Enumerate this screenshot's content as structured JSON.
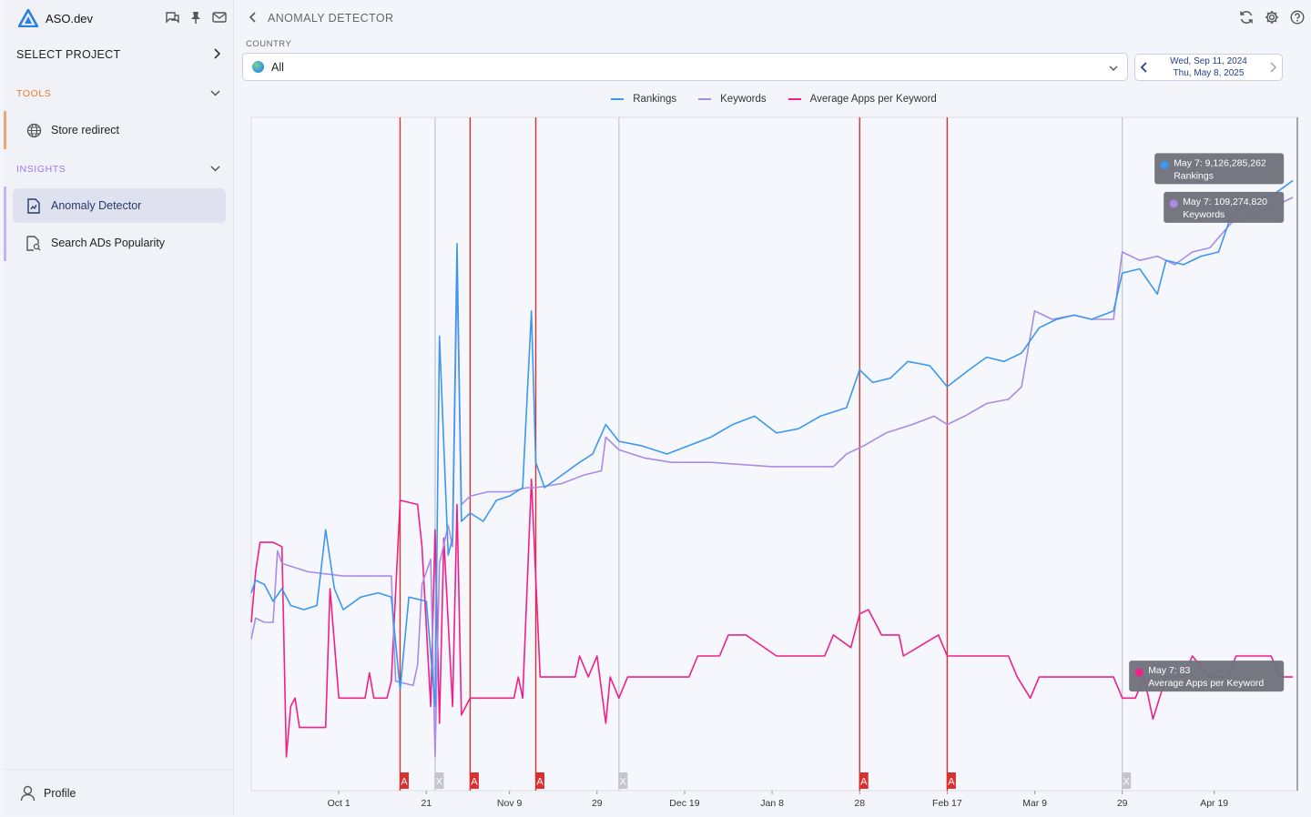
{
  "app": {
    "name": "ASO.dev"
  },
  "sidebar": {
    "select_project": "SELECT PROJECT",
    "sections": [
      {
        "title": "TOOLS",
        "items": [
          {
            "label": "Store redirect",
            "icon": "globe-icon"
          }
        ]
      },
      {
        "title": "INSIGHTS",
        "items": [
          {
            "label": "Anomaly Detector",
            "icon": "document-chart-icon",
            "active": true
          },
          {
            "label": "Search ADs Popularity",
            "icon": "document-search-icon"
          }
        ]
      }
    ],
    "profile": "Profile"
  },
  "page": {
    "title": "ANOMALY DETECTOR"
  },
  "filters": {
    "country_label": "COUNTRY",
    "country_value": "All",
    "date_start": "Wed, Sep 11, 2024",
    "date_end": "Thu, May 8, 2025"
  },
  "colors": {
    "rankings": "#3a98f0",
    "keywords": "#a98be6",
    "avg_apps": "#f0208a",
    "anomaly": "#d93030",
    "excluded": "#c3c4cc"
  },
  "chart_data": {
    "type": "line",
    "legend_position": "top",
    "series": [
      {
        "name": "Rankings",
        "color": "#3a98f0",
        "points": [
          [
            "2024-09-11",
            5.35
          ],
          [
            "2024-09-12",
            5.5
          ],
          [
            "2024-09-14",
            5.45
          ],
          [
            "2024-09-16",
            5.25
          ],
          [
            "2024-09-18",
            5.4
          ],
          [
            "2024-09-20",
            5.2
          ],
          [
            "2024-09-23",
            5.15
          ],
          [
            "2024-09-26",
            5.2
          ],
          [
            "2024-09-28",
            6.1
          ],
          [
            "2024-09-30",
            5.4
          ],
          [
            "2024-10-02",
            5.15
          ],
          [
            "2024-10-06",
            5.3
          ],
          [
            "2024-10-10",
            5.35
          ],
          [
            "2024-10-13",
            5.3
          ],
          [
            "2024-10-15",
            4.2
          ],
          [
            "2024-10-17",
            5.3
          ],
          [
            "2024-10-21",
            5.25
          ],
          [
            "2024-10-23",
            4.0
          ],
          [
            "2024-10-24",
            8.4
          ],
          [
            "2024-10-26",
            5.8
          ],
          [
            "2024-10-27",
            6.0
          ],
          [
            "2024-10-28",
            9.5
          ],
          [
            "2024-10-29",
            6.2
          ],
          [
            "2024-10-31",
            6.3
          ],
          [
            "2024-11-03",
            6.2
          ],
          [
            "2024-11-06",
            6.45
          ],
          [
            "2024-11-09",
            6.5
          ],
          [
            "2024-11-12",
            6.6
          ],
          [
            "2024-11-14",
            8.7
          ],
          [
            "2024-11-15",
            6.9
          ],
          [
            "2024-11-17",
            6.6
          ],
          [
            "2024-11-21",
            6.75
          ],
          [
            "2024-11-25",
            6.9
          ],
          [
            "2024-11-28",
            7.0
          ],
          [
            "2024-12-01",
            7.35
          ],
          [
            "2024-12-04",
            7.15
          ],
          [
            "2024-12-09",
            7.1
          ],
          [
            "2024-12-15",
            7.0
          ],
          [
            "2024-12-20",
            7.1
          ],
          [
            "2024-12-25",
            7.2
          ],
          [
            "2024-12-30",
            7.35
          ],
          [
            "2025-01-04",
            7.45
          ],
          [
            "2025-01-09",
            7.25
          ],
          [
            "2025-01-14",
            7.3
          ],
          [
            "2025-01-19",
            7.45
          ],
          [
            "2025-01-25",
            7.55
          ],
          [
            "2025-01-28",
            8.0
          ],
          [
            "2025-01-31",
            7.85
          ],
          [
            "2025-02-04",
            7.9
          ],
          [
            "2025-02-08",
            8.1
          ],
          [
            "2025-02-13",
            8.05
          ],
          [
            "2025-02-17",
            7.8
          ],
          [
            "2025-02-22",
            8.0
          ],
          [
            "2025-02-26",
            8.15
          ],
          [
            "2025-03-02",
            8.1
          ],
          [
            "2025-03-06",
            8.2
          ],
          [
            "2025-03-10",
            8.5
          ],
          [
            "2025-03-14",
            8.6
          ],
          [
            "2025-03-18",
            8.65
          ],
          [
            "2025-03-22",
            8.6
          ],
          [
            "2025-03-27",
            8.7
          ],
          [
            "2025-03-29",
            9.15
          ],
          [
            "2025-04-02",
            9.2
          ],
          [
            "2025-04-06",
            8.9
          ],
          [
            "2025-04-08",
            9.3
          ],
          [
            "2025-04-12",
            9.25
          ],
          [
            "2025-04-16",
            9.35
          ],
          [
            "2025-04-20",
            9.4
          ],
          [
            "2025-04-23",
            9.85
          ],
          [
            "2025-04-28",
            10.0
          ],
          [
            "2025-05-03",
            10.1
          ],
          [
            "2025-05-07",
            10.25
          ]
        ]
      },
      {
        "name": "Keywords",
        "color": "#a98be6",
        "points": [
          [
            "2024-09-11",
            4.8
          ],
          [
            "2024-09-12",
            5.05
          ],
          [
            "2024-09-14",
            5.0
          ],
          [
            "2024-09-16",
            5.0
          ],
          [
            "2024-09-17",
            5.85
          ],
          [
            "2024-09-18",
            5.7
          ],
          [
            "2024-09-24",
            5.6
          ],
          [
            "2024-10-02",
            5.55
          ],
          [
            "2024-10-09",
            5.55
          ],
          [
            "2024-10-13",
            5.55
          ],
          [
            "2024-10-14",
            4.3
          ],
          [
            "2024-10-18",
            4.25
          ],
          [
            "2024-10-19",
            4.5
          ],
          [
            "2024-10-20",
            5.45
          ],
          [
            "2024-10-22",
            5.75
          ],
          [
            "2024-10-23",
            3.4
          ],
          [
            "2024-10-24",
            5.7
          ],
          [
            "2024-10-26",
            6.15
          ],
          [
            "2024-10-27",
            5.9
          ],
          [
            "2024-10-28",
            9.2
          ],
          [
            "2024-10-29",
            6.4
          ],
          [
            "2024-10-31",
            6.5
          ],
          [
            "2024-11-04",
            6.55
          ],
          [
            "2024-11-09",
            6.55
          ],
          [
            "2024-11-13",
            6.6
          ],
          [
            "2024-11-15",
            6.6
          ],
          [
            "2024-11-21",
            6.65
          ],
          [
            "2024-11-26",
            6.75
          ],
          [
            "2024-11-30",
            6.8
          ],
          [
            "2024-12-01",
            7.2
          ],
          [
            "2024-12-04",
            7.05
          ],
          [
            "2024-12-10",
            6.95
          ],
          [
            "2024-12-16",
            6.9
          ],
          [
            "2024-12-25",
            6.9
          ],
          [
            "2025-01-08",
            6.85
          ],
          [
            "2025-01-22",
            6.85
          ],
          [
            "2025-01-25",
            7.0
          ],
          [
            "2025-01-29",
            7.1
          ],
          [
            "2025-02-03",
            7.25
          ],
          [
            "2025-02-09",
            7.35
          ],
          [
            "2025-02-14",
            7.45
          ],
          [
            "2025-02-17",
            7.35
          ],
          [
            "2025-02-21",
            7.45
          ],
          [
            "2025-02-26",
            7.6
          ],
          [
            "2025-03-03",
            7.65
          ],
          [
            "2025-03-06",
            7.8
          ],
          [
            "2025-03-09",
            8.7
          ],
          [
            "2025-03-13",
            8.6
          ],
          [
            "2025-03-18",
            8.65
          ],
          [
            "2025-03-22",
            8.6
          ],
          [
            "2025-03-27",
            8.6
          ],
          [
            "2025-03-29",
            9.4
          ],
          [
            "2025-04-02",
            9.3
          ],
          [
            "2025-04-06",
            9.35
          ],
          [
            "2025-04-10",
            9.25
          ],
          [
            "2025-04-14",
            9.4
          ],
          [
            "2025-04-18",
            9.45
          ],
          [
            "2025-04-23",
            9.75
          ],
          [
            "2025-04-28",
            9.85
          ],
          [
            "2025-05-03",
            9.95
          ],
          [
            "2025-05-07",
            10.05
          ]
        ]
      },
      {
        "name": "Average Apps per Keyword",
        "color": "#f0208a",
        "points": [
          [
            "2024-09-11",
            5.0
          ],
          [
            "2024-09-12",
            5.6
          ],
          [
            "2024-09-13",
            5.95
          ],
          [
            "2024-09-16",
            5.95
          ],
          [
            "2024-09-18",
            5.9
          ],
          [
            "2024-09-19",
            3.4
          ],
          [
            "2024-09-20",
            4.0
          ],
          [
            "2024-09-21",
            4.1
          ],
          [
            "2024-09-22",
            3.75
          ],
          [
            "2024-09-28",
            3.75
          ],
          [
            "2024-09-29",
            5.4
          ],
          [
            "2024-10-01",
            4.1
          ],
          [
            "2024-10-07",
            4.1
          ],
          [
            "2024-10-08",
            4.4
          ],
          [
            "2024-10-09",
            4.1
          ],
          [
            "2024-10-12",
            4.1
          ],
          [
            "2024-10-13",
            4.3
          ],
          [
            "2024-10-15",
            6.45
          ],
          [
            "2024-10-19",
            6.4
          ],
          [
            "2024-10-20",
            5.9
          ],
          [
            "2024-10-22",
            4.0
          ],
          [
            "2024-10-23",
            6.1
          ],
          [
            "2024-10-24",
            3.8
          ],
          [
            "2024-10-25",
            6.0
          ],
          [
            "2024-10-27",
            4.0
          ],
          [
            "2024-10-28",
            6.4
          ],
          [
            "2024-10-29",
            3.9
          ],
          [
            "2024-10-31",
            4.1
          ],
          [
            "2024-11-02",
            4.1
          ],
          [
            "2024-11-10",
            4.1
          ],
          [
            "2024-11-11",
            4.35
          ],
          [
            "2024-11-12",
            4.1
          ],
          [
            "2024-11-14",
            6.7
          ],
          [
            "2024-11-16",
            4.35
          ],
          [
            "2024-11-24",
            4.35
          ],
          [
            "2024-11-25",
            4.6
          ],
          [
            "2024-11-27",
            4.35
          ],
          [
            "2024-11-29",
            4.6
          ],
          [
            "2024-12-01",
            3.8
          ],
          [
            "2024-12-02",
            4.35
          ],
          [
            "2024-12-04",
            4.1
          ],
          [
            "2024-12-06",
            4.35
          ],
          [
            "2024-12-20",
            4.35
          ],
          [
            "2024-12-22",
            4.6
          ],
          [
            "2024-12-27",
            4.6
          ],
          [
            "2024-12-29",
            4.85
          ],
          [
            "2025-01-02",
            4.85
          ],
          [
            "2025-01-09",
            4.6
          ],
          [
            "2025-01-20",
            4.6
          ],
          [
            "2025-01-22",
            4.85
          ],
          [
            "2025-01-26",
            4.7
          ],
          [
            "2025-01-28",
            5.1
          ],
          [
            "2025-01-30",
            5.15
          ],
          [
            "2025-02-02",
            4.85
          ],
          [
            "2025-02-06",
            4.85
          ],
          [
            "2025-02-07",
            4.6
          ],
          [
            "2025-02-15",
            4.85
          ],
          [
            "2025-02-17",
            4.6
          ],
          [
            "2025-03-03",
            4.6
          ],
          [
            "2025-03-05",
            4.35
          ],
          [
            "2025-03-08",
            4.1
          ],
          [
            "2025-03-10",
            4.35
          ],
          [
            "2025-03-27",
            4.35
          ],
          [
            "2025-03-29",
            4.1
          ],
          [
            "2025-04-01",
            4.1
          ],
          [
            "2025-04-03",
            4.35
          ],
          [
            "2025-04-05",
            3.85
          ],
          [
            "2025-04-08",
            4.35
          ],
          [
            "2025-04-12",
            4.35
          ],
          [
            "2025-04-14",
            4.6
          ],
          [
            "2025-04-18",
            4.35
          ],
          [
            "2025-04-22",
            4.35
          ],
          [
            "2025-04-24",
            4.6
          ],
          [
            "2025-05-02",
            4.6
          ],
          [
            "2025-05-04",
            4.35
          ],
          [
            "2025-05-07",
            4.35
          ]
        ]
      }
    ],
    "x_ticks": [
      "Oct 1",
      "21",
      "Nov 9",
      "29",
      "Dec 19",
      "Jan 8",
      "28",
      "Feb 17",
      "Mar 9",
      "29",
      "Apr 19"
    ],
    "x_tick_dates": [
      "2024-10-01",
      "2024-10-21",
      "2024-11-09",
      "2024-11-29",
      "2024-12-19",
      "2025-01-08",
      "2025-01-28",
      "2025-02-17",
      "2025-03-09",
      "2025-03-29",
      "2025-04-19"
    ],
    "xlim": [
      "2024-09-11",
      "2025-05-08"
    ],
    "ylim": [
      3,
      11
    ],
    "grid": false,
    "markers": [
      {
        "date": "2024-10-15",
        "type": "anomaly",
        "label": "A"
      },
      {
        "date": "2024-10-23",
        "type": "excluded",
        "label": "X"
      },
      {
        "date": "2024-10-31",
        "type": "anomaly",
        "label": "A"
      },
      {
        "date": "2024-11-15",
        "type": "anomaly",
        "label": "A"
      },
      {
        "date": "2024-12-04",
        "type": "excluded",
        "label": "X"
      },
      {
        "date": "2025-01-28",
        "type": "anomaly",
        "label": "A"
      },
      {
        "date": "2025-02-17",
        "type": "anomaly",
        "label": "A"
      },
      {
        "date": "2025-03-29",
        "type": "excluded",
        "label": "X"
      }
    ],
    "tooltips": [
      {
        "series": "Rankings",
        "line1": "May 7: 9,126,285,262",
        "line2": "Rankings",
        "color": "#3a98f0"
      },
      {
        "series": "Keywords",
        "line1": "May 7: 109,274,820",
        "line2": "Keywords",
        "color": "#a98be6"
      },
      {
        "series": "Average Apps per Keyword",
        "line1": "May 7: 83",
        "line2": "Average Apps per Keyword",
        "color": "#f0208a"
      }
    ]
  }
}
